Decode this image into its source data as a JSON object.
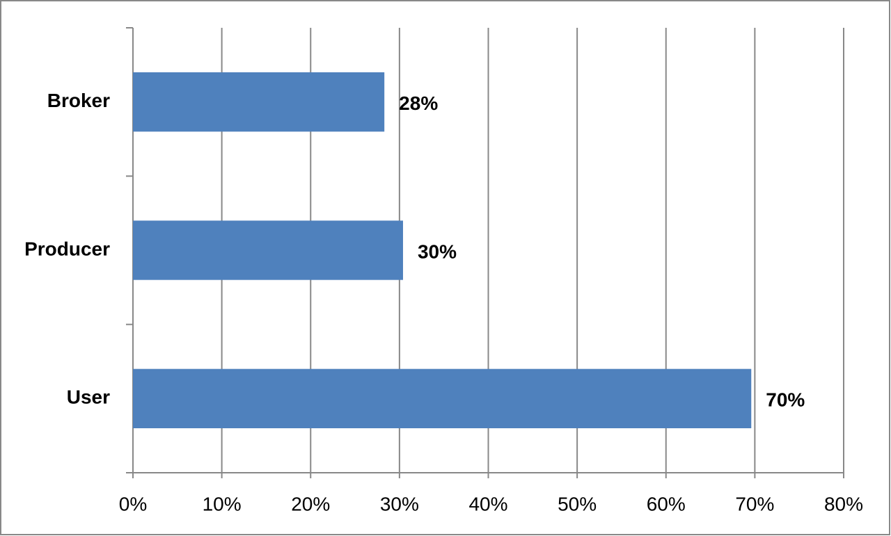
{
  "chart_data": {
    "type": "bar",
    "orientation": "horizontal",
    "categories": [
      "Broker",
      "Producer",
      "User"
    ],
    "values": [
      28.3,
      30.4,
      69.6
    ],
    "value_labels": [
      "28%",
      "30%",
      "70%"
    ],
    "color": "#4f81bd",
    "xlim": [
      0,
      80
    ],
    "xticks": [
      {
        "value": 0,
        "label": "0%"
      },
      {
        "value": 10,
        "label": "10%"
      },
      {
        "value": 20,
        "label": "20%"
      },
      {
        "value": 30,
        "label": "30%"
      },
      {
        "value": 40,
        "label": "40%"
      },
      {
        "value": 50,
        "label": "50%"
      },
      {
        "value": 60,
        "label": "60%"
      },
      {
        "value": 70,
        "label": "70%"
      },
      {
        "value": 80,
        "label": "80%"
      }
    ],
    "grid": true
  }
}
